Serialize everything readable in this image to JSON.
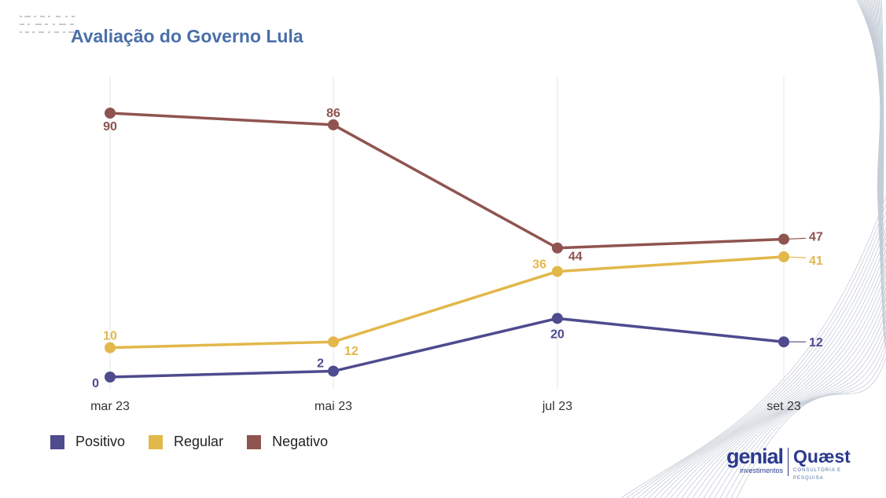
{
  "header": {
    "title": "Avaliação do Governo Lula"
  },
  "chart_data": {
    "type": "line",
    "title": "Avaliação do Governo Lula",
    "xlabel": "",
    "ylabel": "",
    "categories": [
      "mar 23",
      "mai 23",
      "jul 23",
      "set 23"
    ],
    "series": [
      {
        "name": "Positivo",
        "values": [
          0,
          2,
          20,
          12
        ],
        "color": "#4e4b8f"
      },
      {
        "name": "Regular",
        "values": [
          10,
          12,
          36,
          41
        ],
        "color": "#e2b84a"
      },
      {
        "name": "Negativo",
        "values": [
          90,
          86,
          44,
          47
        ],
        "color": "#8f5450"
      }
    ],
    "ylim": [
      0,
      90
    ],
    "grid": "vertical",
    "legend": "bottom-left"
  },
  "logos": {
    "genial": "genial",
    "genial_sub": "investimentos",
    "quaest": "Quæst",
    "quaest_sub": "CONSULTORIA E PESQUISA"
  }
}
